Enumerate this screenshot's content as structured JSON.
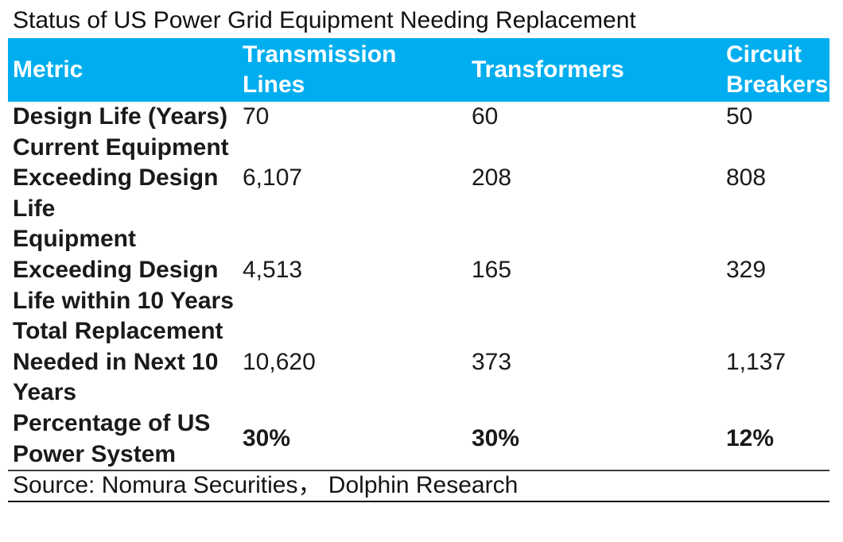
{
  "colors": {
    "header_bg": "#00AEEF",
    "header_text": "#FFFFFF",
    "body_text": "#1A1A1A"
  },
  "chart_data": {
    "type": "table",
    "title": "Status of US Power Grid Equipment Needing Replacement",
    "columns": [
      "Metric",
      "Transmission Lines",
      "Transformers",
      "Circuit Breakers"
    ],
    "rows": [
      [
        "Design Life (Years)",
        "70",
        "60",
        "50"
      ],
      [
        "Current Equipment Exceeding Design Life",
        "6,107",
        "208",
        "808"
      ],
      [
        "Equipment Exceeding Design Life within 10 Years",
        "4,513",
        "165",
        "329"
      ],
      [
        "Total Replacement Needed in Next 10 Years",
        "10,620",
        "373",
        "1,137"
      ],
      [
        "Percentage of US Power System",
        "30%",
        "30%",
        "12%"
      ]
    ],
    "source": "Source: Nomura Securities，  Dolphin Research",
    "layout": {
      "header_style": "solid cyan band, white bold text",
      "grid": "no inner gridlines; horizontal rules above and below source line",
      "last_row_values_bold": true
    }
  }
}
